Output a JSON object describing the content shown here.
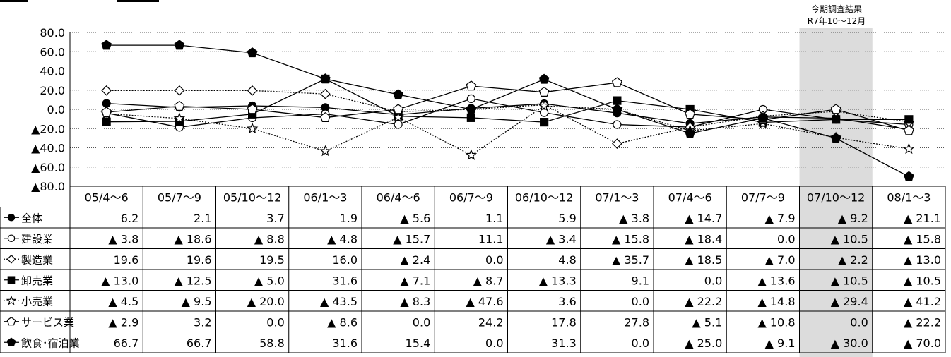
{
  "annotation": {
    "line1": "今期調査結果",
    "line2": "R7年10～12月"
  },
  "chart_data": {
    "type": "line",
    "title": "",
    "xlabel": "",
    "ylabel": "",
    "ylim": [
      -80,
      80
    ],
    "y_ticks": [
      "80.0",
      "60.0",
      "40.0",
      "20.0",
      "0.0",
      "▲20.0",
      "▲40.0",
      "▲60.0",
      "▲80.0"
    ],
    "grid": true,
    "legend_position": "table-left",
    "highlight_category": "07/10～12",
    "categories": [
      "05/4～6",
      "05/7～9",
      "05/10～12",
      "06/1～3",
      "06/4～6",
      "06/7～9",
      "06/10～12",
      "07/1～3",
      "07/4～6",
      "07/7～9",
      "07/10～12",
      "08/1～3"
    ],
    "series": [
      {
        "name": "全体",
        "marker": "filled-circle",
        "line": "solid",
        "values": [
          6.2,
          2.1,
          3.7,
          1.9,
          -5.6,
          1.1,
          5.9,
          -3.8,
          -14.7,
          -7.9,
          -9.2,
          -21.1
        ],
        "labels": [
          "6.2",
          "2.1",
          "3.7",
          "1.9",
          "▲ 5.6",
          "1.1",
          "5.9",
          "▲ 3.8",
          "▲ 14.7",
          "▲ 7.9",
          "▲ 9.2",
          "▲ 21.1"
        ]
      },
      {
        "name": "建設業",
        "marker": "open-circle",
        "line": "solid",
        "values": [
          -3.8,
          -18.6,
          -8.8,
          -4.8,
          -15.7,
          11.1,
          -3.4,
          -15.8,
          -18.4,
          0.0,
          -10.5,
          -15.8
        ],
        "labels": [
          "▲ 3.8",
          "▲ 18.6",
          "▲ 8.8",
          "▲ 4.8",
          "▲ 15.7",
          "11.1",
          "▲ 3.4",
          "▲ 15.8",
          "▲ 18.4",
          "0.0",
          "▲ 10.5",
          "▲ 15.8"
        ]
      },
      {
        "name": "製造業",
        "marker": "open-diamond",
        "line": "dotted",
        "values": [
          19.6,
          19.6,
          19.5,
          16.0,
          -2.4,
          0.0,
          4.8,
          -35.7,
          -18.5,
          -7.0,
          -2.2,
          -13.0
        ],
        "labels": [
          "19.6",
          "19.6",
          "19.5",
          "16.0",
          "▲ 2.4",
          "0.0",
          "4.8",
          "▲ 35.7",
          "▲ 18.5",
          "▲ 7.0",
          "▲ 2.2",
          "▲ 13.0"
        ]
      },
      {
        "name": "卸売業",
        "marker": "filled-square",
        "line": "solid",
        "values": [
          -13.0,
          -12.5,
          -5.0,
          31.6,
          -7.1,
          -8.7,
          -13.3,
          9.1,
          0.0,
          -13.6,
          -10.5,
          -10.5
        ],
        "labels": [
          "▲ 13.0",
          "▲ 12.5",
          "▲ 5.0",
          "31.6",
          "▲ 7.1",
          "▲ 8.7",
          "▲ 13.3",
          "9.1",
          "0.0",
          "▲ 13.6",
          "▲ 10.5",
          "▲ 10.5"
        ]
      },
      {
        "name": "小売業",
        "marker": "open-star",
        "line": "dotted",
        "values": [
          -4.5,
          -9.5,
          -20.0,
          -43.5,
          -8.3,
          -47.6,
          3.6,
          0.0,
          -22.2,
          -14.8,
          -29.4,
          -41.2
        ],
        "labels": [
          "▲ 4.5",
          "▲ 9.5",
          "▲ 20.0",
          "▲ 43.5",
          "▲ 8.3",
          "▲ 47.6",
          "3.6",
          "0.0",
          "▲ 22.2",
          "▲ 14.8",
          "▲ 29.4",
          "▲ 41.2"
        ]
      },
      {
        "name": "サービス業",
        "marker": "open-pentagon",
        "line": "solid",
        "values": [
          -2.9,
          3.2,
          0.0,
          -8.6,
          0.0,
          24.2,
          17.8,
          27.8,
          -5.1,
          -10.8,
          0.0,
          -22.2
        ],
        "labels": [
          "▲ 2.9",
          "3.2",
          "0.0",
          "▲ 8.6",
          "0.0",
          "24.2",
          "17.8",
          "27.8",
          "▲ 5.1",
          "▲ 10.8",
          "0.0",
          "▲ 22.2"
        ]
      },
      {
        "name": "飲食･宿泊業",
        "marker": "filled-pentagon",
        "line": "solid",
        "values": [
          66.7,
          66.7,
          58.8,
          31.6,
          15.4,
          0.0,
          31.3,
          0.0,
          -25.0,
          -9.1,
          -30.0,
          -70.0
        ],
        "labels": [
          "66.7",
          "66.7",
          "58.8",
          "31.6",
          "15.4",
          "0.0",
          "31.3",
          "0.0",
          "▲ 25.0",
          "▲ 9.1",
          "▲ 30.0",
          "▲ 70.0"
        ]
      }
    ]
  }
}
